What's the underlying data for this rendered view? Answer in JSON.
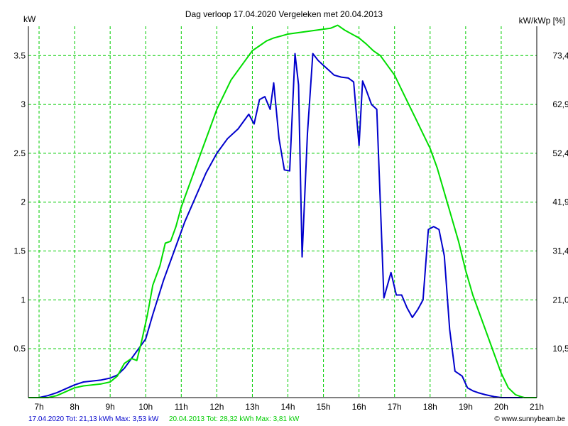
{
  "chart_data": {
    "type": "line",
    "title": "Dag  verloop 17.04.2020   Vergeleken met 20.04.2013",
    "ylabel_left": "kW",
    "ylabel_right": "kW/kWp [%]",
    "x_ticks": [
      "7h",
      "8h",
      "9h",
      "10h",
      "11h",
      "12h",
      "13h",
      "14h",
      "15h",
      "16h",
      "17h",
      "18h",
      "19h",
      "20h",
      "21h"
    ],
    "x_tick_values": [
      7,
      8,
      9,
      10,
      11,
      12,
      13,
      14,
      15,
      16,
      17,
      18,
      19,
      20,
      21
    ],
    "xlim": [
      6.7,
      21.0
    ],
    "y_left_ticks": [
      "0.5",
      "1",
      "1.5",
      "2",
      "2.5",
      "3",
      "3.5"
    ],
    "y_left_tick_values": [
      0.5,
      1.0,
      1.5,
      2.0,
      2.5,
      3.0,
      3.5
    ],
    "y_right_ticks": [
      "10,5",
      "21,0",
      "31,4",
      "41,9",
      "52,4",
      "62,9",
      "73,4"
    ],
    "ylim": [
      0,
      3.8
    ],
    "grid": true,
    "colors": {
      "grid": "#00cc00",
      "series_2020": "#0000cc",
      "series_2013": "#00dd00",
      "axis": "#000000"
    },
    "series": [
      {
        "name": "17.04.2020",
        "color": "#0000cc",
        "x": [
          7.0,
          7.25,
          7.5,
          7.75,
          8.0,
          8.25,
          8.5,
          8.75,
          9.0,
          9.2,
          9.4,
          9.6,
          9.8,
          10.0,
          10.2,
          10.5,
          10.8,
          11.1,
          11.4,
          11.7,
          12.0,
          12.3,
          12.6,
          12.9,
          13.05,
          13.2,
          13.35,
          13.5,
          13.6,
          13.75,
          13.9,
          14.05,
          14.2,
          14.3,
          14.4,
          14.55,
          14.7,
          14.85,
          15.0,
          15.15,
          15.3,
          15.5,
          15.7,
          15.85,
          16.0,
          16.1,
          16.2,
          16.35,
          16.5,
          16.7,
          16.9,
          17.05,
          17.2,
          17.35,
          17.5,
          17.65,
          17.8,
          17.95,
          18.1,
          18.25,
          18.4,
          18.55,
          18.7,
          18.9,
          19.05,
          19.2,
          19.35,
          19.55,
          19.8,
          20.0,
          20.2,
          20.4,
          20.6
        ],
        "values": [
          0.0,
          0.02,
          0.05,
          0.09,
          0.13,
          0.16,
          0.17,
          0.18,
          0.2,
          0.23,
          0.3,
          0.4,
          0.5,
          0.6,
          0.85,
          1.2,
          1.5,
          1.8,
          2.05,
          2.3,
          2.5,
          2.65,
          2.75,
          2.9,
          2.8,
          3.05,
          3.08,
          2.95,
          3.22,
          2.65,
          2.33,
          2.32,
          3.52,
          3.2,
          1.44,
          2.7,
          3.52,
          3.45,
          3.4,
          3.35,
          3.3,
          3.28,
          3.27,
          3.23,
          2.58,
          3.24,
          3.15,
          3.0,
          2.95,
          1.02,
          1.28,
          1.05,
          1.05,
          0.92,
          0.82,
          0.9,
          1.0,
          1.72,
          1.75,
          1.72,
          1.45,
          0.7,
          0.27,
          0.22,
          0.1,
          0.07,
          0.05,
          0.03,
          0.01,
          0.0,
          0.0,
          0.0,
          0.0
        ]
      },
      {
        "name": "20.04.2013",
        "color": "#00dd00",
        "x": [
          6.7,
          7.0,
          7.25,
          7.5,
          7.75,
          8.0,
          8.25,
          8.5,
          8.75,
          9.0,
          9.2,
          9.4,
          9.6,
          9.75,
          9.9,
          10.05,
          10.2,
          10.4,
          10.55,
          10.7,
          10.85,
          11.0,
          11.2,
          11.4,
          11.6,
          11.8,
          12.0,
          12.2,
          12.4,
          12.6,
          12.8,
          13.0,
          13.2,
          13.4,
          13.6,
          13.8,
          14.0,
          14.2,
          14.4,
          14.6,
          14.8,
          15.0,
          15.2,
          15.4,
          15.6,
          15.8,
          16.0,
          16.2,
          16.4,
          16.6,
          16.8,
          17.0,
          17.2,
          17.4,
          17.6,
          17.8,
          18.0,
          18.2,
          18.4,
          18.6,
          18.8,
          19.0,
          19.2,
          19.4,
          19.6,
          19.8,
          20.0,
          20.2,
          20.4,
          20.55,
          20.65,
          20.8,
          21.0
        ],
        "values": [
          0.0,
          0.0,
          0.0,
          0.02,
          0.06,
          0.1,
          0.12,
          0.13,
          0.14,
          0.16,
          0.22,
          0.35,
          0.4,
          0.38,
          0.6,
          0.85,
          1.15,
          1.35,
          1.58,
          1.6,
          1.75,
          1.95,
          2.15,
          2.35,
          2.55,
          2.75,
          2.95,
          3.1,
          3.25,
          3.35,
          3.45,
          3.55,
          3.6,
          3.65,
          3.68,
          3.7,
          3.72,
          3.73,
          3.74,
          3.75,
          3.76,
          3.77,
          3.78,
          3.81,
          3.76,
          3.72,
          3.68,
          3.62,
          3.55,
          3.5,
          3.4,
          3.3,
          3.15,
          3.0,
          2.85,
          2.7,
          2.55,
          2.35,
          2.1,
          1.85,
          1.6,
          1.3,
          1.05,
          0.85,
          0.65,
          0.45,
          0.25,
          0.1,
          0.03,
          0.01,
          0.0,
          0.0,
          0.0
        ]
      }
    ]
  },
  "footer": {
    "line_2020": "17.04.2020 Tot: 21,13 kWh Max: 3,53 kW",
    "line_2013": "20.04.2013 Tot: 28,32 kWh Max: 3,81 kW",
    "watermark": "© www.sunnybeam.be"
  }
}
